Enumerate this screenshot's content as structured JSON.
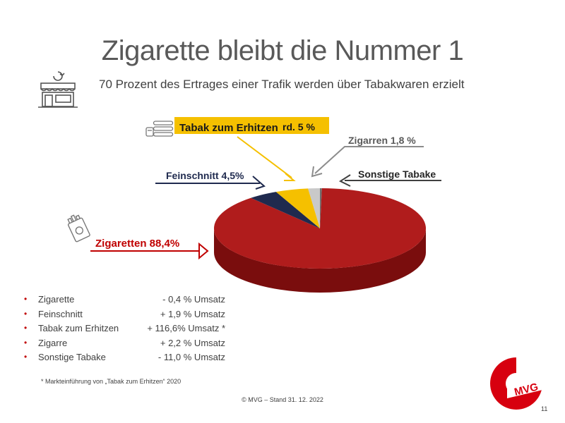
{
  "slide": {
    "title": "Zigarette bleibt die Nummer 1",
    "subtitle": "70 Prozent des Ertrages einer Trafik werden über Tabakwaren erzielt",
    "footnote": "* Markteinführung von „Tabak zum Erhitzen“ 2020",
    "source": "© MVG – Stand 31. 12. 2022",
    "page_number": "11",
    "logo_text": "MVG",
    "icons": [
      "shop-icon",
      "heated-tobacco-icon",
      "cigarette-pack-icon"
    ]
  },
  "chart_data": {
    "type": "pie",
    "unit": "%",
    "slices": [
      {
        "label": "Zigaretten",
        "value_text": "88,4 %",
        "value": 88.4,
        "color": "#b01c1c",
        "side": "#7a0d0d"
      },
      {
        "label": "Feinschnitt",
        "value_text": "4,5 %",
        "value": 4.5,
        "color": "#1f2a4e",
        "side": "#141c36"
      },
      {
        "label": "Tabak zum Erhitzen",
        "value_text": "rd. 5 %",
        "value": 5.0,
        "color": "#f5c000",
        "side": "#b88f00"
      },
      {
        "label": "Zigarren",
        "value_text": "1,8 %",
        "value": 1.8,
        "color": "#c9c9c9",
        "side": "#8e8e8e"
      },
      {
        "label": "Sonstige Tabake",
        "value_text": "",
        "value": 0.3,
        "color": "#6e6e6e",
        "side": "#4a4a4a"
      }
    ],
    "label_texts": {
      "zigaretten": "Zigaretten 88,4%",
      "feinschnitt": "Feinschnitt 4,5%",
      "tabak_name": "Tabak zum Erhitzen",
      "tabak_value": "rd. 5 %",
      "zigarren": "Zigarren 1,8 %",
      "sonstige": "Sonstige Tabake"
    }
  },
  "legend": {
    "items": [
      {
        "name": "Zigarette",
        "change": "- 0,4 % Umsatz"
      },
      {
        "name": "Feinschnitt",
        "change": "+ 1,9 % Umsatz"
      },
      {
        "name": "Tabak zum Erhitzen",
        "change": "+ 116,6% Umsatz *"
      },
      {
        "name": "Zigarre",
        "change": "+ 2,2 % Umsatz"
      },
      {
        "name": "Sonstige Tabake",
        "change": "- 11,0 % Umsatz"
      }
    ]
  },
  "colors": {
    "accent_red": "#c00000",
    "title_gray": "#595959",
    "navy": "#1f2a4e",
    "yellow": "#f5c000"
  }
}
